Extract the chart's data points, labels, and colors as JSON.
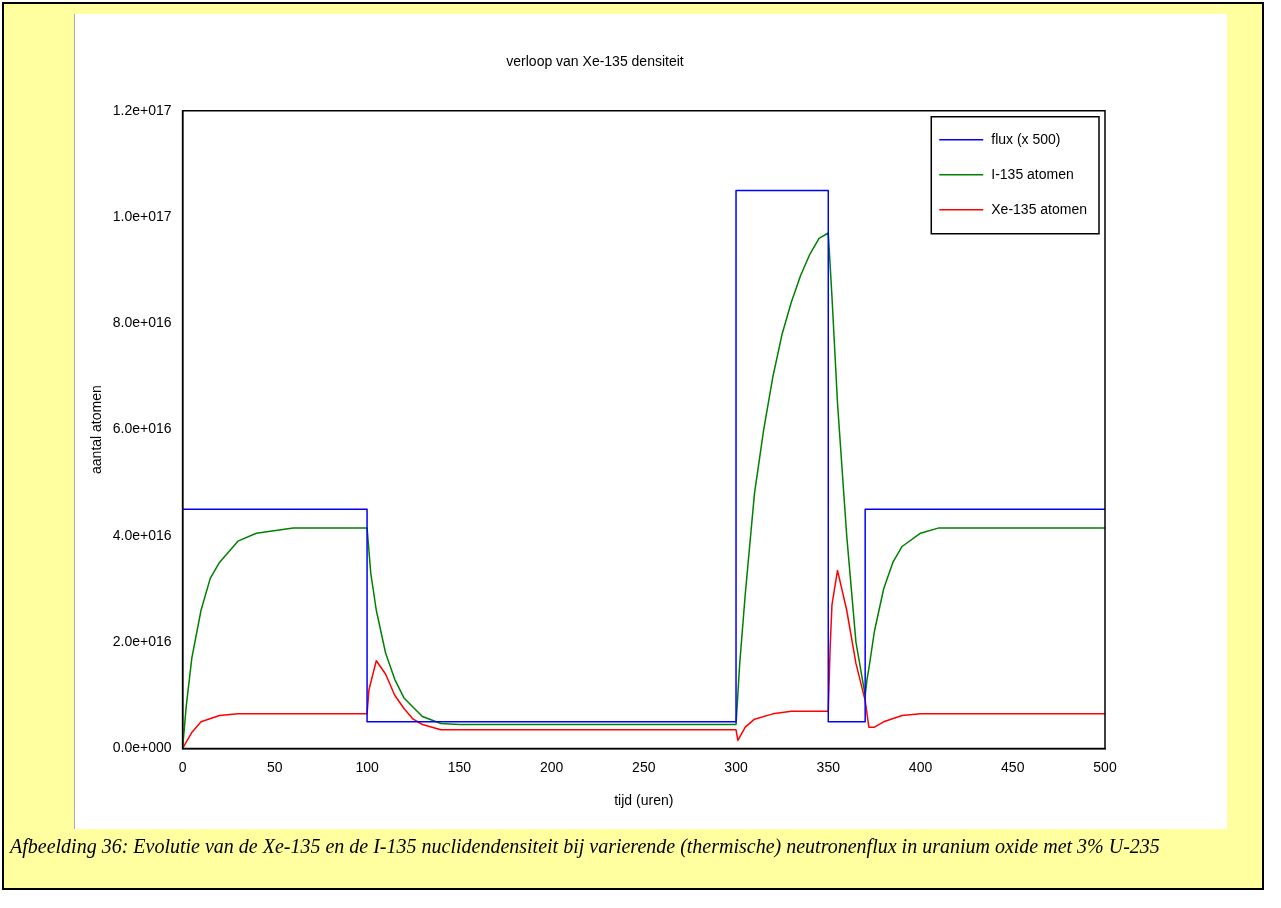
{
  "chart_data": {
    "type": "line",
    "title": "verloop van Xe-135 densiteit",
    "xlabel": "tijd (uren)",
    "ylabel": "aantal atomen",
    "annotations": [
      "Afbeelding 36: Evolutie van de Xe-135 en de I-135 nuclidendensiteit bij varierende (thermische) neutronenflux in uranium oxide met 3% U-235"
    ],
    "xlim": [
      0,
      500
    ],
    "xticks": [
      0,
      50,
      100,
      150,
      200,
      250,
      300,
      350,
      400,
      450,
      500
    ],
    "ylim": [
      0,
      1.2e+17
    ],
    "yticks": [
      {
        "value": 0,
        "label": "0.0e+000"
      },
      {
        "value": 2e+16,
        "label": "2.0e+016"
      },
      {
        "value": 4e+16,
        "label": "4.0e+016"
      },
      {
        "value": 6e+16,
        "label": "6.0e+016"
      },
      {
        "value": 8e+16,
        "label": "8.0e+016"
      },
      {
        "value": 1e+17,
        "label": "1.0e+017"
      },
      {
        "value": 1.2e+17,
        "label": "1.2e+017"
      }
    ],
    "grid": false,
    "legend": "top right",
    "marker": "none",
    "line_style": "solid",
    "series": [
      {
        "name": "flux (x 500)",
        "color": "#0000ff",
        "x": [
          0,
          100,
          100,
          300,
          300,
          350,
          350,
          370,
          370,
          500
        ],
        "values": [
          4.5e+16,
          4.5e+16,
          5000000000000000.0,
          5000000000000000.0,
          1.05e+17,
          1.05e+17,
          5000000000000000.0,
          5000000000000000.0,
          4.5e+16,
          4.5e+16
        ]
      },
      {
        "name": "I-135 atomen",
        "color": "#008000",
        "x": [
          0,
          2,
          5,
          10,
          15,
          20,
          30,
          40,
          60,
          100,
          102,
          105,
          110,
          115,
          120,
          130,
          140,
          150,
          300,
          302,
          305,
          310,
          315,
          320,
          325,
          330,
          335,
          340,
          345,
          350,
          352,
          355,
          360,
          365,
          370,
          371,
          372,
          375,
          380,
          385,
          390,
          400,
          410,
          500
        ],
        "values": [
          0,
          8000000000000000.0,
          1.7e+16,
          2.6e+16,
          3.2e+16,
          3.5e+16,
          3.9e+16,
          4.05e+16,
          4.15e+16,
          4.15e+16,
          3.3e+16,
          2.6e+16,
          1.8e+16,
          1.3e+16,
          9500000000000000.0,
          6000000000000000.0,
          4700000000000000.0,
          4500000000000000.0,
          4500000000000000.0,
          1.6e+16,
          2.9e+16,
          4.8e+16,
          6e+16,
          7e+16,
          7.8e+16,
          8.4e+16,
          8.9e+16,
          9.3e+16,
          9.6e+16,
          9.7e+16,
          8.5e+16,
          6.5e+16,
          4e+16,
          2e+16,
          1e+16,
          1.3e+16,
          1.5e+16,
          2.2e+16,
          3e+16,
          3.5e+16,
          3.8e+16,
          4.05e+16,
          4.15e+16,
          4.15e+16
        ]
      },
      {
        "name": "Xe-135 atomen",
        "color": "#ff0000",
        "x": [
          0,
          5,
          10,
          20,
          30,
          100,
          101,
          105,
          110,
          115,
          120,
          125,
          130,
          140,
          300,
          301,
          305,
          310,
          320,
          330,
          350,
          351,
          352,
          355,
          360,
          365,
          370,
          372,
          375,
          380,
          390,
          400,
          500
        ],
        "values": [
          0,
          3000000000000000.0,
          5000000000000000.0,
          6200000000000000.0,
          6500000000000000.0,
          6500000000000000.0,
          1.1e+16,
          1.65e+16,
          1.4e+16,
          1e+16,
          7500000000000000.0,
          5500000000000000.0,
          4500000000000000.0,
          3500000000000000.0,
          3500000000000000.0,
          1500000000000000.0,
          4000000000000000.0,
          5500000000000000.0,
          6500000000000000.0,
          7000000000000000.0,
          7000000000000000.0,
          1.9e+16,
          2.7e+16,
          3.35e+16,
          2.6e+16,
          1.6e+16,
          9000000000000000.0,
          4000000000000000.0,
          4000000000000000.0,
          5000000000000000.0,
          6200000000000000.0,
          6500000000000000.0,
          6500000000000000.0
        ]
      }
    ]
  }
}
